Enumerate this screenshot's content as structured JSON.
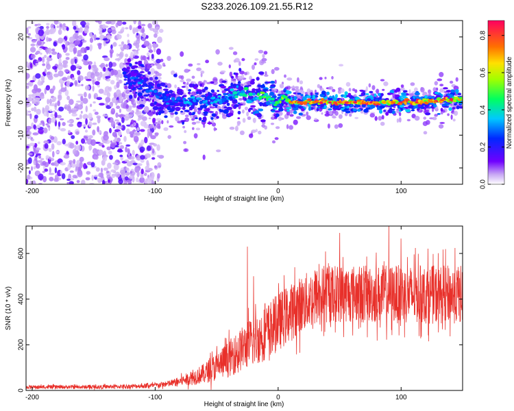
{
  "title": "S233.2026.109.21.55.R12",
  "chart_data": [
    {
      "type": "heatmap",
      "name": "spectrogram",
      "xlabel": "Height of straight line (km)",
      "ylabel": "Frequency (Hz)",
      "xlim": [
        -205,
        150
      ],
      "ylim": [
        -25,
        25
      ],
      "xticks": [
        -200,
        -100,
        0,
        100
      ],
      "yticks": [
        -20,
        -10,
        0,
        10,
        20
      ],
      "colorbar": {
        "label": "Normalized spectral amplitude",
        "range": [
          0.0,
          0.88
        ],
        "ticks": [
          0.0,
          0.2,
          0.4,
          0.6,
          0.8
        ]
      },
      "ridge": {
        "description": "dominant frequency ridge vs height",
        "x": [
          -125,
          -110,
          -100,
          -90,
          -80,
          -70,
          -60,
          -50,
          -40,
          -30,
          -20,
          -10,
          -5,
          0,
          5,
          10,
          20,
          40,
          60,
          80,
          100,
          120,
          140,
          150
        ],
        "y": [
          8,
          6,
          2,
          1,
          0,
          1,
          0,
          1,
          2,
          3,
          1,
          2,
          0,
          -1,
          2,
          0,
          0,
          0,
          0,
          0,
          0,
          0,
          1,
          1
        ],
        "peak_amplitude": [
          0.3,
          0.35,
          0.3,
          0.35,
          0.3,
          0.4,
          0.35,
          0.4,
          0.35,
          0.45,
          0.5,
          0.6,
          0.55,
          0.5,
          0.65,
          0.8,
          0.85,
          0.85,
          0.85,
          0.85,
          0.85,
          0.85,
          0.85,
          0.8
        ]
      },
      "noise_region": {
        "x_range": [
          -205,
          -95
        ],
        "description": "broadband noise across all frequencies at low amplitude"
      }
    },
    {
      "type": "line",
      "name": "snr",
      "xlabel": "Height of straight line (km)",
      "ylabel": "SNR (10 * v/v)",
      "xlim": [
        -205,
        150
      ],
      "ylim": [
        0,
        720
      ],
      "xticks": [
        -200,
        -100,
        0,
        100
      ],
      "yticks": [
        0,
        200,
        400,
        600
      ],
      "color": "#e8302a",
      "envelope": {
        "x": [
          -205,
          -150,
          -120,
          -100,
          -90,
          -80,
          -70,
          -60,
          -50,
          -40,
          -30,
          -25,
          -20,
          -10,
          0,
          10,
          20,
          30,
          40,
          50,
          60,
          70,
          80,
          90,
          100,
          110,
          120,
          130,
          140,
          150
        ],
        "mean": [
          15,
          15,
          18,
          22,
          28,
          40,
          55,
          75,
          105,
          140,
          180,
          200,
          215,
          255,
          300,
          340,
          380,
          410,
          420,
          425,
          425,
          420,
          420,
          425,
          420,
          420,
          420,
          420,
          420,
          420
        ],
        "spread": [
          10,
          10,
          12,
          14,
          18,
          25,
          40,
          55,
          80,
          100,
          120,
          130,
          140,
          150,
          160,
          160,
          160,
          160,
          160,
          160,
          160,
          160,
          160,
          160,
          160,
          160,
          160,
          160,
          160,
          160
        ]
      },
      "spikes": [
        {
          "x": -25,
          "y": 630
        },
        {
          "x": -20,
          "y": 500
        },
        {
          "x": 50,
          "y": 690
        },
        {
          "x": 90,
          "y": 720
        },
        {
          "x": 100,
          "y": 665
        }
      ]
    }
  ]
}
